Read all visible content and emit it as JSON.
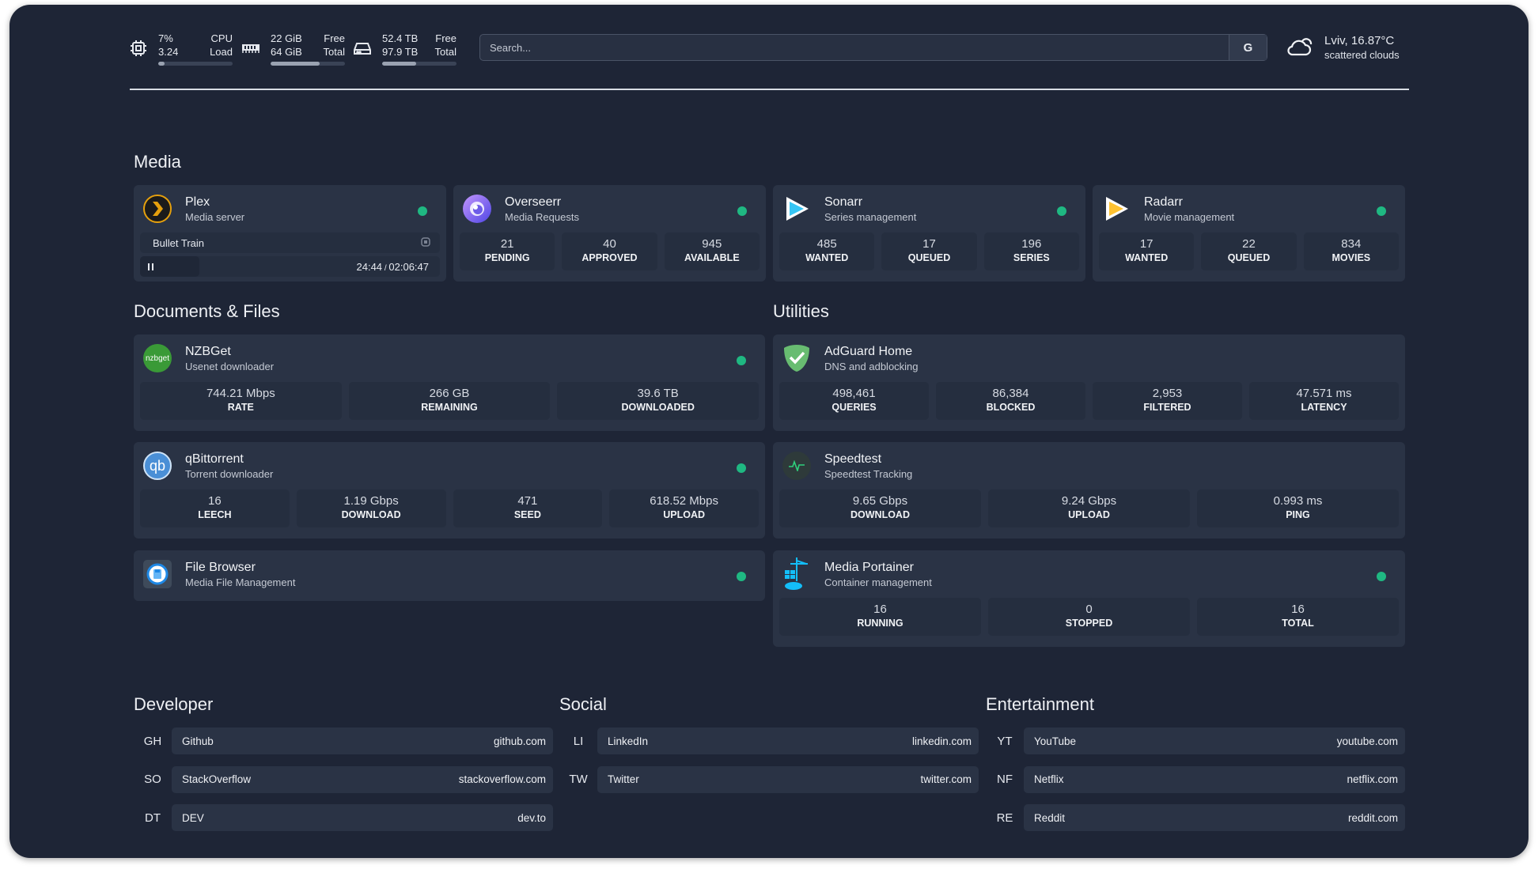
{
  "header": {
    "cpu": {
      "icon": "cpu-icon",
      "v1": "7%",
      "l1": "CPU",
      "v2": "3.24",
      "l2": "Load",
      "fill": 0.07
    },
    "memory": {
      "icon": "memory-icon",
      "v1": "22 GiB",
      "l1": "Free",
      "v2": "64 GiB",
      "l2": "Total",
      "fill": 0.66
    },
    "disk": {
      "icon": "disk-icon",
      "v1": "52.4 TB",
      "l1": "Free",
      "v2": "97.9 TB",
      "l2": "Total",
      "fill": 0.46
    },
    "search": {
      "placeholder": "Search...",
      "button": "G"
    },
    "weather": {
      "icon": "cloud-icon",
      "location": "Lviv, 16.87°C",
      "condition": "scattered clouds"
    }
  },
  "sections": {
    "media": "Media",
    "docs": "Documents & Files",
    "utilities": "Utilities",
    "developer": "Developer",
    "social": "Social",
    "entertainment": "Entertainment"
  },
  "media": [
    {
      "name": "Plex",
      "desc": "Media server",
      "icon": "plex-icon",
      "status": "online",
      "now_playing": {
        "title": "Bullet Train",
        "time": "24:44",
        "duration": "02:06:47"
      }
    },
    {
      "name": "Overseerr",
      "desc": "Media Requests",
      "icon": "overseerr-icon",
      "status": "online",
      "stats": [
        {
          "v": "21",
          "l": "PENDING"
        },
        {
          "v": "40",
          "l": "APPROVED"
        },
        {
          "v": "945",
          "l": "AVAILABLE"
        }
      ]
    },
    {
      "name": "Sonarr",
      "desc": "Series management",
      "icon": "sonarr-icon",
      "status": "online",
      "stats": [
        {
          "v": "485",
          "l": "WANTED"
        },
        {
          "v": "17",
          "l": "QUEUED"
        },
        {
          "v": "196",
          "l": "SERIES"
        }
      ]
    },
    {
      "name": "Radarr",
      "desc": "Movie management",
      "icon": "radarr-icon",
      "status": "online",
      "stats": [
        {
          "v": "17",
          "l": "WANTED"
        },
        {
          "v": "22",
          "l": "QUEUED"
        },
        {
          "v": "834",
          "l": "MOVIES"
        }
      ]
    }
  ],
  "docs": [
    {
      "name": "NZBGet",
      "desc": "Usenet downloader",
      "icon": "nzbget-icon",
      "icon_text": "nzbget",
      "status": "online",
      "stats": [
        {
          "v": "744.21 Mbps",
          "l": "RATE"
        },
        {
          "v": "266 GB",
          "l": "REMAINING"
        },
        {
          "v": "39.6 TB",
          "l": "DOWNLOADED"
        }
      ]
    },
    {
      "name": "qBittorrent",
      "desc": "Torrent downloader",
      "icon": "qbittorrent-icon",
      "icon_text": "qb",
      "status": "online",
      "stats": [
        {
          "v": "16",
          "l": "LEECH"
        },
        {
          "v": "1.19 Gbps",
          "l": "DOWNLOAD"
        },
        {
          "v": "471",
          "l": "SEED"
        },
        {
          "v": "618.52 Mbps",
          "l": "UPLOAD"
        }
      ]
    },
    {
      "name": "File Browser",
      "desc": "Media File Management",
      "icon": "file-browser-icon",
      "status": "online"
    }
  ],
  "utilities": [
    {
      "name": "AdGuard Home",
      "desc": "DNS and adblocking",
      "icon": "adguard-icon",
      "stats": [
        {
          "v": "498,461",
          "l": "QUERIES"
        },
        {
          "v": "86,384",
          "l": "BLOCKED"
        },
        {
          "v": "2,953",
          "l": "FILTERED"
        },
        {
          "v": "47.571 ms",
          "l": "LATENCY"
        }
      ]
    },
    {
      "name": "Speedtest",
      "desc": "Speedtest Tracking",
      "icon": "speedtest-icon",
      "stats": [
        {
          "v": "9.65 Gbps",
          "l": "DOWNLOAD"
        },
        {
          "v": "9.24 Gbps",
          "l": "UPLOAD"
        },
        {
          "v": "0.993 ms",
          "l": "PING"
        }
      ]
    },
    {
      "name": "Media Portainer",
      "desc": "Container management",
      "icon": "portainer-icon",
      "status": "online",
      "stats": [
        {
          "v": "16",
          "l": "RUNNING"
        },
        {
          "v": "0",
          "l": "STOPPED"
        },
        {
          "v": "16",
          "l": "TOTAL"
        }
      ]
    }
  ],
  "bookmarks": {
    "developer": [
      {
        "abbr": "GH",
        "name": "Github",
        "url": "github.com"
      },
      {
        "abbr": "SO",
        "name": "StackOverflow",
        "url": "stackoverflow.com"
      },
      {
        "abbr": "DT",
        "name": "DEV",
        "url": "dev.to"
      }
    ],
    "social": [
      {
        "abbr": "LI",
        "name": "LinkedIn",
        "url": "linkedin.com"
      },
      {
        "abbr": "TW",
        "name": "Twitter",
        "url": "twitter.com"
      }
    ],
    "entertainment": [
      {
        "abbr": "YT",
        "name": "YouTube",
        "url": "youtube.com"
      },
      {
        "abbr": "NF",
        "name": "Netflix",
        "url": "netflix.com"
      },
      {
        "abbr": "RE",
        "name": "Reddit",
        "url": "reddit.com"
      }
    ]
  },
  "colors": {
    "background": "#1e2536",
    "card": "#2a3345",
    "stat": "#252e3f",
    "status_online": "#1fb882"
  }
}
